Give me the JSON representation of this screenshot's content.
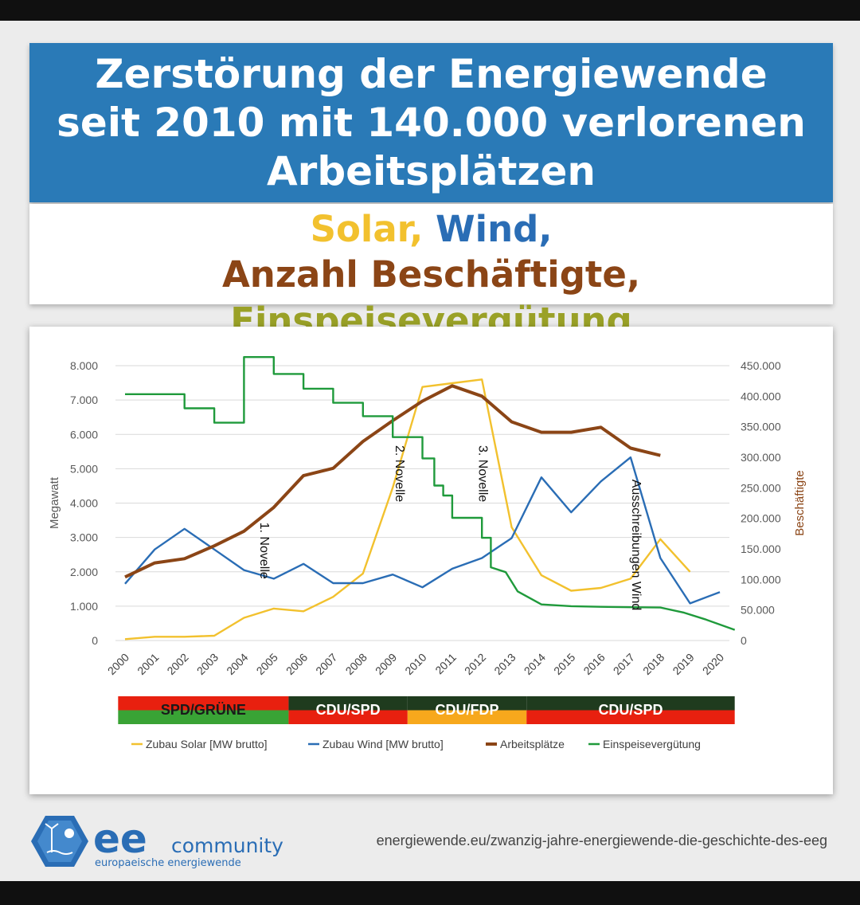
{
  "title": {
    "line1": "Zerstörung der Energiewende",
    "line2": "seit 2010 mit 140.000 verlorenen",
    "line3": "Arbeitsplätzen"
  },
  "subtitle": {
    "solar": "Solar,",
    "wind": "Wind,",
    "jobs": "Anzahl Beschäftigte,",
    "feedin": "Einspeisevergütung"
  },
  "colors": {
    "title_bg": "#2a7ab7",
    "solar": "#f2c12e",
    "wind": "#2a6db5",
    "jobs": "#8b4516",
    "feedin_text": "#9aa127",
    "feedin_line": "#1f9a3b"
  },
  "chart_data": {
    "type": "line",
    "x": [
      "2000",
      "2001",
      "2002",
      "2003",
      "2004",
      "2005",
      "2006",
      "2007",
      "2008",
      "2009",
      "2010",
      "2011",
      "2012",
      "2013",
      "2014",
      "2015",
      "2016",
      "2017",
      "2018",
      "2019",
      "2020"
    ],
    "left_axis": {
      "label": "Megawatt",
      "ylim": [
        0,
        8000
      ],
      "ticks": [
        "0",
        "1.000",
        "2.000",
        "3.000",
        "4.000",
        "5.000",
        "6.000",
        "7.000",
        "8.000"
      ]
    },
    "right_axis": {
      "label": "Beschäftigte",
      "ylim": [
        0,
        450000
      ],
      "ticks": [
        "0",
        "50.000",
        "100.000",
        "150.000",
        "200.000",
        "250.000",
        "300.000",
        "350.000",
        "400.000",
        "450.000"
      ]
    },
    "grid": true,
    "series": [
      {
        "name": "Zubau Solar [MW brutto]",
        "axis": "left",
        "color": "#f2c12e",
        "x": [
          "2000",
          "2001",
          "2002",
          "2003",
          "2004",
          "2005",
          "2006",
          "2007",
          "2008",
          "2009",
          "2010",
          "2011",
          "2012",
          "2013",
          "2014",
          "2015",
          "2016",
          "2017",
          "2018",
          "2019"
        ],
        "values": [
          40,
          110,
          110,
          140,
          660,
          930,
          850,
          1270,
          1950,
          4450,
          7380,
          7490,
          7600,
          3300,
          1900,
          1450,
          1530,
          1800,
          2950,
          2000
        ]
      },
      {
        "name": "Zubau Wind [MW brutto]",
        "axis": "left",
        "color": "#2a6db5",
        "x": [
          "2000",
          "2001",
          "2002",
          "2003",
          "2004",
          "2005",
          "2006",
          "2007",
          "2008",
          "2009",
          "2010",
          "2011",
          "2012",
          "2013",
          "2014",
          "2015",
          "2016",
          "2017",
          "2018",
          "2019",
          "2020"
        ],
        "values": [
          1650,
          2650,
          3250,
          2650,
          2050,
          1800,
          2230,
          1670,
          1670,
          1920,
          1550,
          2090,
          2400,
          2980,
          4750,
          3730,
          4630,
          5330,
          2400,
          1080,
          1410
        ]
      },
      {
        "name": "Arbeitsplätze",
        "axis": "right",
        "color": "#8b4516",
        "x": [
          "2000",
          "2001",
          "2002",
          "2003",
          "2004",
          "2005",
          "2006",
          "2007",
          "2008",
          "2009",
          "2010",
          "2011",
          "2012",
          "2013",
          "2014",
          "2015",
          "2016",
          "2017",
          "2018"
        ],
        "values": [
          104000,
          127000,
          134000,
          155000,
          179000,
          218000,
          270000,
          282000,
          326000,
          360000,
          392000,
          417000,
          400000,
          358000,
          341000,
          341000,
          349000,
          315000,
          303000
        ]
      },
      {
        "name": "Einspeisevergütung",
        "axis": "left",
        "color": "#1f9a3b",
        "step": true,
        "x": [
          2000,
          2002,
          2002,
          2003,
          2003,
          2004,
          2004,
          2005,
          2005,
          2006,
          2006,
          2007,
          2007,
          2008,
          2008,
          2009,
          2009,
          2010,
          2010,
          2010.4,
          2010.4,
          2010.7,
          2010.7,
          2011,
          2011,
          2012,
          2012,
          2012.3,
          2012.3,
          2012.8,
          2013.2,
          2014,
          2015,
          2016,
          2017,
          2018,
          2018.8,
          2019.5,
          2020.5
        ],
        "values": [
          7170,
          7170,
          6760,
          6760,
          6340,
          6340,
          8250,
          8250,
          7760,
          7760,
          7330,
          7330,
          6920,
          6920,
          6530,
          6530,
          5920,
          5920,
          5300,
          5300,
          4510,
          4510,
          4220,
          4220,
          3570,
          3570,
          2990,
          2990,
          2130,
          1990,
          1430,
          1050,
          1000,
          980,
          970,
          960,
          810,
          620,
          310
        ]
      }
    ],
    "annotations": [
      "1. Novelle",
      "2. Novelle",
      "3. Novelle",
      "Ausschreibungen Wind"
    ],
    "legend_position": "bottom",
    "governments": [
      {
        "label": "SPD/GRÜNE",
        "from": "2000",
        "to": "2005"
      },
      {
        "label": "CDU/SPD",
        "from": "2006",
        "to": "2009"
      },
      {
        "label": "CDU/FDP",
        "from": "2010",
        "to": "2013"
      },
      {
        "label": "CDU/SPD",
        "from": "2014",
        "to": "2020"
      }
    ]
  },
  "footer": {
    "logo_main": "ee",
    "logo_community": "community",
    "logo_tagline": "europaeische energiewende",
    "url": "energiewende.eu/zwanzig-jahre-energiewende-die-geschichte-des-eeg"
  }
}
